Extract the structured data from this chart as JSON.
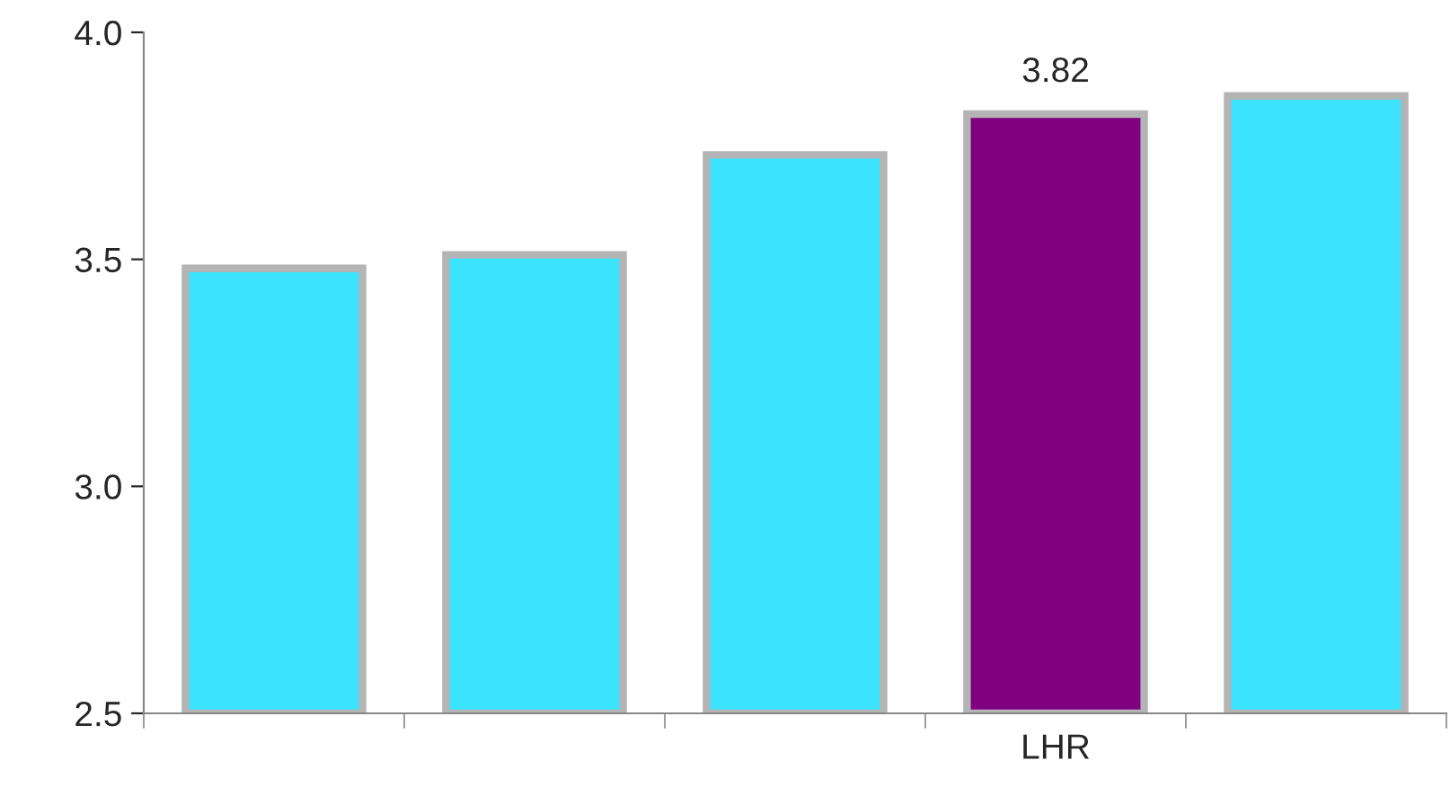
{
  "chart_data": {
    "type": "bar",
    "categories": [
      null,
      null,
      null,
      "LHR",
      null
    ],
    "values": [
      3.48,
      3.51,
      3.73,
      3.82,
      3.86
    ],
    "colors": [
      "#3be3ff",
      "#3be3ff",
      "#3be3ff",
      "#800080",
      "#3be3ff"
    ],
    "value_labels": [
      null,
      null,
      null,
      "3.82",
      null
    ],
    "ylim": [
      2.5,
      4.0
    ],
    "yticks": [
      {
        "value": 2.5,
        "label": "2.5"
      },
      {
        "value": 3.0,
        "label": "3.0"
      },
      {
        "value": 3.5,
        "label": "3.5"
      },
      {
        "value": 4.0,
        "label": "4.0"
      }
    ],
    "grid": false,
    "legend": false
  }
}
